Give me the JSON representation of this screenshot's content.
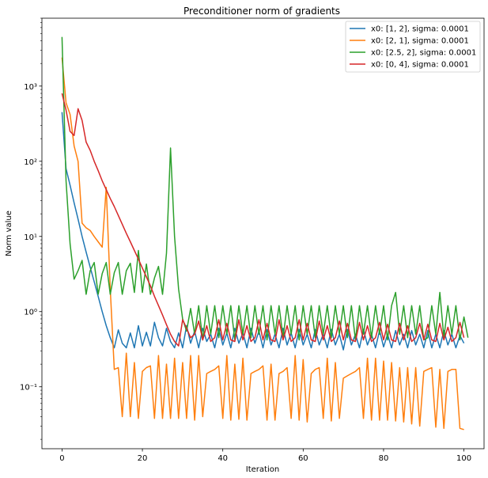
{
  "chart_data": {
    "type": "line",
    "title": "Preconditioner norm of gradients",
    "xlabel": "Iteration",
    "ylabel": "Norm value",
    "yscale": "log",
    "xlim": [
      -5,
      105
    ],
    "ylim": [
      0.015,
      8000
    ],
    "grid": false,
    "legend_position": "top-right",
    "x_ticks": [
      0,
      20,
      40,
      60,
      80,
      100
    ],
    "y_ticks": [
      {
        "value": 0.1,
        "label": "10⁻¹"
      },
      {
        "value": 1,
        "label": "10⁰"
      },
      {
        "value": 10,
        "label": "10¹"
      },
      {
        "value": 100,
        "label": "10²"
      },
      {
        "value": 1000,
        "label": "10³"
      }
    ],
    "series": [
      {
        "name": "x0: [1, 2], sigma: 0.0001",
        "color": "#1f77b4",
        "values": [
          450,
          80,
          48,
          28,
          17,
          10,
          6.2,
          3.9,
          2.5,
          1.6,
          1.0,
          0.65,
          0.45,
          0.33,
          0.57,
          0.38,
          0.33,
          0.52,
          0.33,
          0.65,
          0.35,
          0.53,
          0.35,
          0.72,
          0.45,
          0.35,
          0.6,
          0.4,
          0.33,
          0.52,
          0.33,
          0.65,
          0.38,
          0.55,
          0.33,
          0.6,
          0.4,
          0.5,
          0.33,
          0.6,
          0.36,
          0.52,
          0.33,
          0.6,
          0.38,
          0.52,
          0.33,
          0.6,
          0.38,
          0.55,
          0.33,
          0.58,
          0.36,
          0.5,
          0.33,
          0.6,
          0.36,
          0.52,
          0.33,
          0.58,
          0.36,
          0.5,
          0.33,
          0.58,
          0.36,
          0.5,
          0.33,
          0.58,
          0.36,
          0.5,
          0.31,
          0.58,
          0.36,
          0.5,
          0.33,
          0.58,
          0.36,
          0.5,
          0.33,
          0.56,
          0.34,
          0.5,
          0.33,
          0.56,
          0.36,
          0.5,
          0.33,
          0.56,
          0.36,
          0.5,
          0.33,
          0.56,
          0.33,
          0.5,
          0.33,
          0.56,
          0.36,
          0.5,
          0.33,
          0.48,
          0.38
        ]
      },
      {
        "name": "x0: [2, 1], sigma: 0.0001",
        "color": "#ff7f0e",
        "values": [
          2400,
          600,
          420,
          160,
          100,
          15,
          13,
          12,
          10,
          8.5,
          7.2,
          45,
          2.0,
          0.17,
          0.18,
          0.04,
          0.28,
          0.04,
          0.21,
          0.038,
          0.16,
          0.18,
          0.19,
          0.038,
          0.26,
          0.038,
          0.2,
          0.038,
          0.24,
          0.038,
          0.21,
          0.038,
          0.26,
          0.036,
          0.26,
          0.04,
          0.15,
          0.16,
          0.17,
          0.19,
          0.038,
          0.26,
          0.036,
          0.2,
          0.037,
          0.24,
          0.036,
          0.15,
          0.16,
          0.17,
          0.19,
          0.036,
          0.2,
          0.036,
          0.15,
          0.16,
          0.18,
          0.038,
          0.26,
          0.036,
          0.23,
          0.034,
          0.15,
          0.17,
          0.18,
          0.038,
          0.24,
          0.035,
          0.21,
          0.038,
          0.13,
          0.14,
          0.15,
          0.16,
          0.18,
          0.038,
          0.24,
          0.036,
          0.24,
          0.036,
          0.22,
          0.036,
          0.21,
          0.035,
          0.18,
          0.034,
          0.18,
          0.032,
          0.18,
          0.03,
          0.16,
          0.17,
          0.18,
          0.029,
          0.17,
          0.028,
          0.16,
          0.17,
          0.17,
          0.028,
          0.027
        ]
      },
      {
        "name": "x0: [2.5, 2], sigma: 0.0001",
        "color": "#2ca02c",
        "values": [
          4500,
          55,
          8,
          2.7,
          3.5,
          4.8,
          1.7,
          3.5,
          4.5,
          1.7,
          3.2,
          4.5,
          1.7,
          3.3,
          4.5,
          1.7,
          3.5,
          4.4,
          1.8,
          6.5,
          1.8,
          4.3,
          1.7,
          2.8,
          4.0,
          1.7,
          6.0,
          150,
          10,
          2.0,
          0.8,
          0.55,
          1.1,
          0.5,
          1.2,
          0.42,
          1.2,
          0.5,
          1.2,
          0.45,
          1.2,
          0.5,
          1.2,
          0.42,
          1.2,
          0.5,
          1.2,
          0.45,
          1.2,
          0.5,
          1.2,
          0.42,
          1.2,
          0.5,
          1.2,
          0.45,
          1.2,
          0.5,
          1.2,
          0.42,
          1.2,
          0.5,
          1.2,
          0.45,
          1.2,
          0.5,
          1.2,
          0.45,
          1.2,
          0.5,
          1.2,
          0.45,
          1.2,
          0.42,
          1.2,
          0.5,
          1.2,
          0.45,
          1.2,
          0.5,
          1.2,
          0.42,
          1.2,
          1.8,
          0.5,
          1.2,
          0.45,
          1.2,
          0.5,
          1.2,
          0.42,
          0.45,
          1.2,
          0.5,
          1.8,
          0.45,
          1.2,
          0.5,
          1.2,
          0.42,
          0.85,
          0.45
        ]
      },
      {
        "name": "x0: [0, 4], sigma: 0.0001",
        "color": "#d62728",
        "values": [
          800,
          480,
          250,
          220,
          500,
          350,
          180,
          140,
          100,
          75,
          55,
          42,
          32,
          25,
          19,
          14.5,
          11,
          8.5,
          6.5,
          5.0,
          3.8,
          2.9,
          2.2,
          1.6,
          1.2,
          0.9,
          0.67,
          0.5,
          0.4,
          0.35,
          0.78,
          0.6,
          0.45,
          0.5,
          0.75,
          0.42,
          0.65,
          0.4,
          0.45,
          0.78,
          0.42,
          0.7,
          0.42,
          0.4,
          0.78,
          0.42,
          0.65,
          0.4,
          0.45,
          0.78,
          0.42,
          0.7,
          0.42,
          0.4,
          0.78,
          0.42,
          0.65,
          0.4,
          0.45,
          0.78,
          0.42,
          0.7,
          0.42,
          0.4,
          0.75,
          0.42,
          0.65,
          0.4,
          0.45,
          0.75,
          0.42,
          0.7,
          0.42,
          0.4,
          0.72,
          0.42,
          0.65,
          0.4,
          0.45,
          0.72,
          0.42,
          0.68,
          0.42,
          0.4,
          0.7,
          0.42,
          0.65,
          0.4,
          0.45,
          0.7,
          0.42,
          0.68,
          0.42,
          0.4,
          0.7,
          0.42,
          0.62,
          0.4,
          0.45,
          0.72,
          0.45
        ]
      }
    ]
  }
}
